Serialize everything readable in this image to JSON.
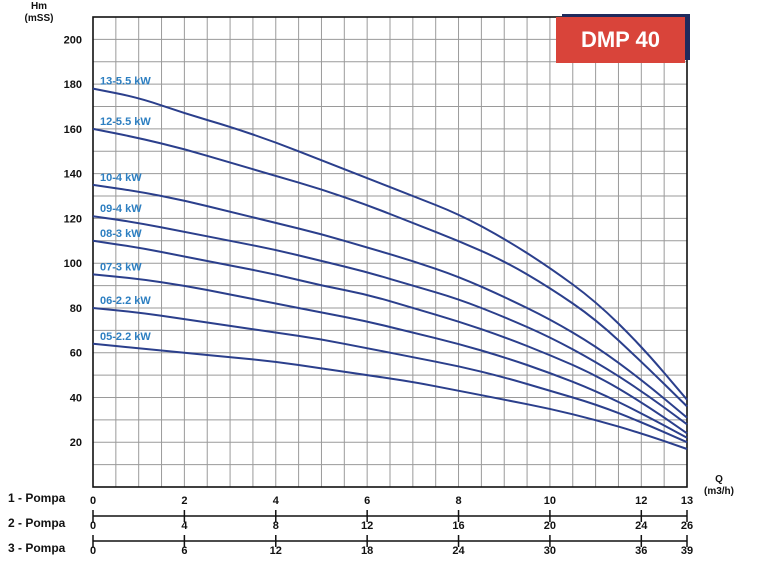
{
  "chart_data": {
    "type": "line",
    "title": "DMP 40",
    "ylabel": "Hm\n(mSS)",
    "ylabel_lines": [
      "Hm",
      "(mSS)"
    ],
    "xlabel_lines": [
      "Q",
      "(m3/h)"
    ],
    "ylim": [
      0,
      210
    ],
    "xlim": [
      0,
      13
    ],
    "y_ticks": [
      20,
      40,
      60,
      80,
      100,
      120,
      140,
      160,
      180,
      200
    ],
    "grid": true,
    "line_color": "#2b3f8c",
    "label_color": "#2d7fc1",
    "x_axes": [
      {
        "label": "1 - Pompa",
        "ticks": [
          "0",
          "2",
          "4",
          "6",
          "8",
          "10",
          "12",
          "13"
        ],
        "tick_q": [
          0,
          2,
          4,
          6,
          8,
          10,
          12,
          13
        ]
      },
      {
        "label": "2 - Pompa",
        "ticks": [
          "0",
          "4",
          "8",
          "12",
          "16",
          "20",
          "24",
          "26"
        ],
        "tick_q": [
          0,
          2,
          4,
          6,
          8,
          10,
          12,
          13
        ]
      },
      {
        "label": "3 - Pompa",
        "ticks": [
          "0",
          "6",
          "12",
          "18",
          "24",
          "30",
          "36",
          "39"
        ],
        "tick_q": [
          0,
          2,
          4,
          6,
          8,
          10,
          12,
          13
        ]
      }
    ],
    "x": [
      0,
      1,
      2,
      3,
      4,
      5,
      6,
      7,
      8,
      9,
      10,
      11,
      12,
      13
    ],
    "series": [
      {
        "name": "13-5.5 kW",
        "values": [
          178,
          174,
          167,
          161,
          154,
          146,
          138,
          130,
          122,
          111,
          98,
          83,
          63,
          39
        ]
      },
      {
        "name": "12-5.5 kW",
        "values": [
          160,
          156,
          151,
          145,
          139,
          133,
          126,
          118,
          110,
          101,
          89,
          75,
          56,
          36
        ]
      },
      {
        "name": "10-4 kW",
        "values": [
          135,
          132,
          128,
          123,
          118,
          113,
          107,
          101,
          94,
          85,
          75,
          63,
          48,
          31
        ]
      },
      {
        "name": "09-4 kW",
        "values": [
          121,
          118,
          114,
          110,
          106,
          101,
          96,
          90,
          84,
          76,
          67,
          56,
          43,
          28
        ]
      },
      {
        "name": "08-3 kW",
        "values": [
          110,
          107,
          103,
          99,
          95,
          90,
          86,
          80,
          74,
          67,
          59,
          50,
          38,
          24
        ]
      },
      {
        "name": "07-3 kW",
        "values": [
          95,
          93,
          90,
          86,
          82,
          78,
          74,
          69,
          64,
          58,
          51,
          43,
          33,
          22
        ]
      },
      {
        "name": "06-2.2 kW",
        "values": [
          80,
          78,
          75,
          72,
          69,
          66,
          62,
          58,
          54,
          49,
          43,
          37,
          29,
          20
        ]
      },
      {
        "name": "05-2.2 kW",
        "values": [
          64,
          62,
          60,
          58,
          56,
          53,
          50,
          47,
          43,
          39,
          35,
          30,
          24,
          17
        ]
      }
    ]
  }
}
